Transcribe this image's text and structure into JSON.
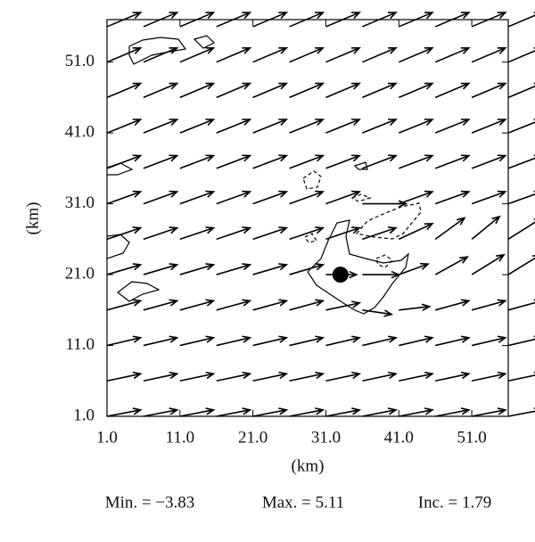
{
  "chart_data": {
    "type": "vector",
    "xlabel": "(km)",
    "ylabel": "(km)",
    "xlim": [
      1,
      56
    ],
    "ylim": [
      1,
      57
    ],
    "xticks": [
      {
        "value": 1,
        "label": "1.0"
      },
      {
        "value": 11,
        "label": "11.0"
      },
      {
        "value": 21,
        "label": "21.0"
      },
      {
        "value": 31,
        "label": "31.0"
      },
      {
        "value": 41,
        "label": "41.0"
      },
      {
        "value": 51,
        "label": "51.0"
      }
    ],
    "yticks": [
      {
        "value": 1,
        "label": "1.0"
      },
      {
        "value": 11,
        "label": "11.0"
      },
      {
        "value": 21,
        "label": "21.0"
      },
      {
        "value": 31,
        "label": "31.0"
      },
      {
        "value": 41,
        "label": "41.0"
      },
      {
        "value": 51,
        "label": "51.0"
      }
    ],
    "x": [
      1,
      6,
      11,
      16,
      21,
      26,
      31,
      36,
      41,
      46,
      51,
      56
    ],
    "y": [
      1,
      6,
      11,
      16,
      21,
      26,
      31,
      36,
      41,
      46,
      51,
      56
    ],
    "u": [
      [
        4.6,
        4.6,
        4.6,
        4.6,
        4.6,
        4.6,
        4.6,
        4.6,
        4.6,
        4.6,
        4.6,
        4.6
      ],
      [
        4.6,
        4.6,
        4.6,
        4.6,
        4.6,
        4.6,
        4.6,
        4.6,
        4.6,
        4.6,
        4.6,
        4.6
      ],
      [
        4.6,
        4.6,
        4.6,
        4.6,
        4.6,
        4.6,
        4.6,
        4.6,
        4.6,
        4.6,
        4.6,
        4.6
      ],
      [
        4.6,
        4.6,
        4.6,
        4.6,
        4.6,
        4.6,
        4.6,
        4.0,
        4.2,
        4.6,
        4.6,
        4.6
      ],
      [
        4.6,
        4.6,
        4.6,
        4.6,
        4.6,
        4.6,
        4.2,
        5.0,
        4.0,
        4.4,
        4.4,
        4.4
      ],
      [
        4.6,
        4.6,
        4.6,
        4.6,
        4.6,
        4.6,
        4.6,
        4.6,
        4.6,
        4.0,
        3.8,
        4.6
      ],
      [
        4.6,
        4.6,
        4.6,
        4.6,
        4.6,
        4.6,
        4.6,
        6.0,
        4.6,
        4.6,
        4.6,
        4.6
      ],
      [
        4.6,
        4.6,
        4.6,
        4.6,
        4.6,
        4.6,
        4.6,
        4.6,
        4.6,
        4.6,
        4.6,
        4.6
      ],
      [
        4.6,
        4.6,
        4.6,
        4.6,
        4.6,
        4.6,
        4.6,
        4.6,
        4.6,
        4.6,
        4.6,
        4.6
      ],
      [
        4.6,
        4.6,
        4.6,
        4.6,
        4.6,
        4.6,
        4.6,
        4.6,
        4.6,
        4.6,
        4.6,
        4.6
      ],
      [
        4.6,
        4.6,
        4.6,
        4.6,
        4.6,
        4.6,
        4.6,
        4.6,
        4.6,
        4.6,
        4.6,
        4.6
      ],
      [
        4.6,
        4.6,
        4.6,
        4.6,
        4.6,
        4.6,
        4.6,
        4.6,
        4.6,
        4.6,
        4.6,
        4.6
      ]
    ],
    "v": [
      [
        0.9,
        0.9,
        0.9,
        0.9,
        0.9,
        0.9,
        0.9,
        0.9,
        0.9,
        0.9,
        0.9,
        0.9
      ],
      [
        1.0,
        1.0,
        1.0,
        1.0,
        1.0,
        1.0,
        1.0,
        1.0,
        1.0,
        1.0,
        1.0,
        1.0
      ],
      [
        1.1,
        1.1,
        1.1,
        1.1,
        1.1,
        1.1,
        1.1,
        1.1,
        1.1,
        1.1,
        1.1,
        1.1
      ],
      [
        1.3,
        1.3,
        1.3,
        1.3,
        1.3,
        1.3,
        1.0,
        -0.6,
        0.5,
        1.3,
        1.3,
        1.3
      ],
      [
        1.4,
        1.4,
        1.4,
        1.4,
        1.4,
        1.4,
        0.0,
        0.0,
        1.5,
        2.5,
        2.8,
        2.8
      ],
      [
        1.6,
        1.6,
        1.6,
        1.6,
        1.6,
        1.6,
        1.6,
        1.6,
        2.2,
        3.0,
        3.2,
        3.0
      ],
      [
        1.7,
        1.7,
        1.7,
        1.7,
        1.7,
        1.7,
        1.7,
        0.0,
        1.7,
        1.7,
        1.7,
        1.7
      ],
      [
        1.8,
        1.8,
        1.8,
        1.8,
        1.8,
        1.8,
        1.8,
        1.8,
        1.8,
        1.8,
        1.8,
        1.8
      ],
      [
        1.9,
        1.9,
        1.9,
        1.9,
        1.9,
        1.9,
        1.9,
        1.9,
        1.9,
        1.9,
        1.9,
        1.9
      ],
      [
        2.0,
        2.0,
        2.0,
        2.0,
        2.0,
        2.0,
        2.0,
        2.0,
        2.0,
        2.0,
        2.0,
        2.0
      ],
      [
        2.0,
        2.0,
        2.0,
        2.0,
        2.0,
        2.0,
        2.0,
        2.0,
        2.0,
        2.0,
        2.0,
        2.0
      ],
      [
        2.0,
        2.0,
        2.0,
        2.0,
        2.0,
        2.0,
        2.0,
        2.0,
        2.0,
        2.0,
        2.0,
        2.0
      ]
    ],
    "center": {
      "x": 33,
      "y": 21
    },
    "footer": [
      "Min. = −3.83",
      "Max. = 5.11",
      "Inc. = 1.79"
    ]
  }
}
